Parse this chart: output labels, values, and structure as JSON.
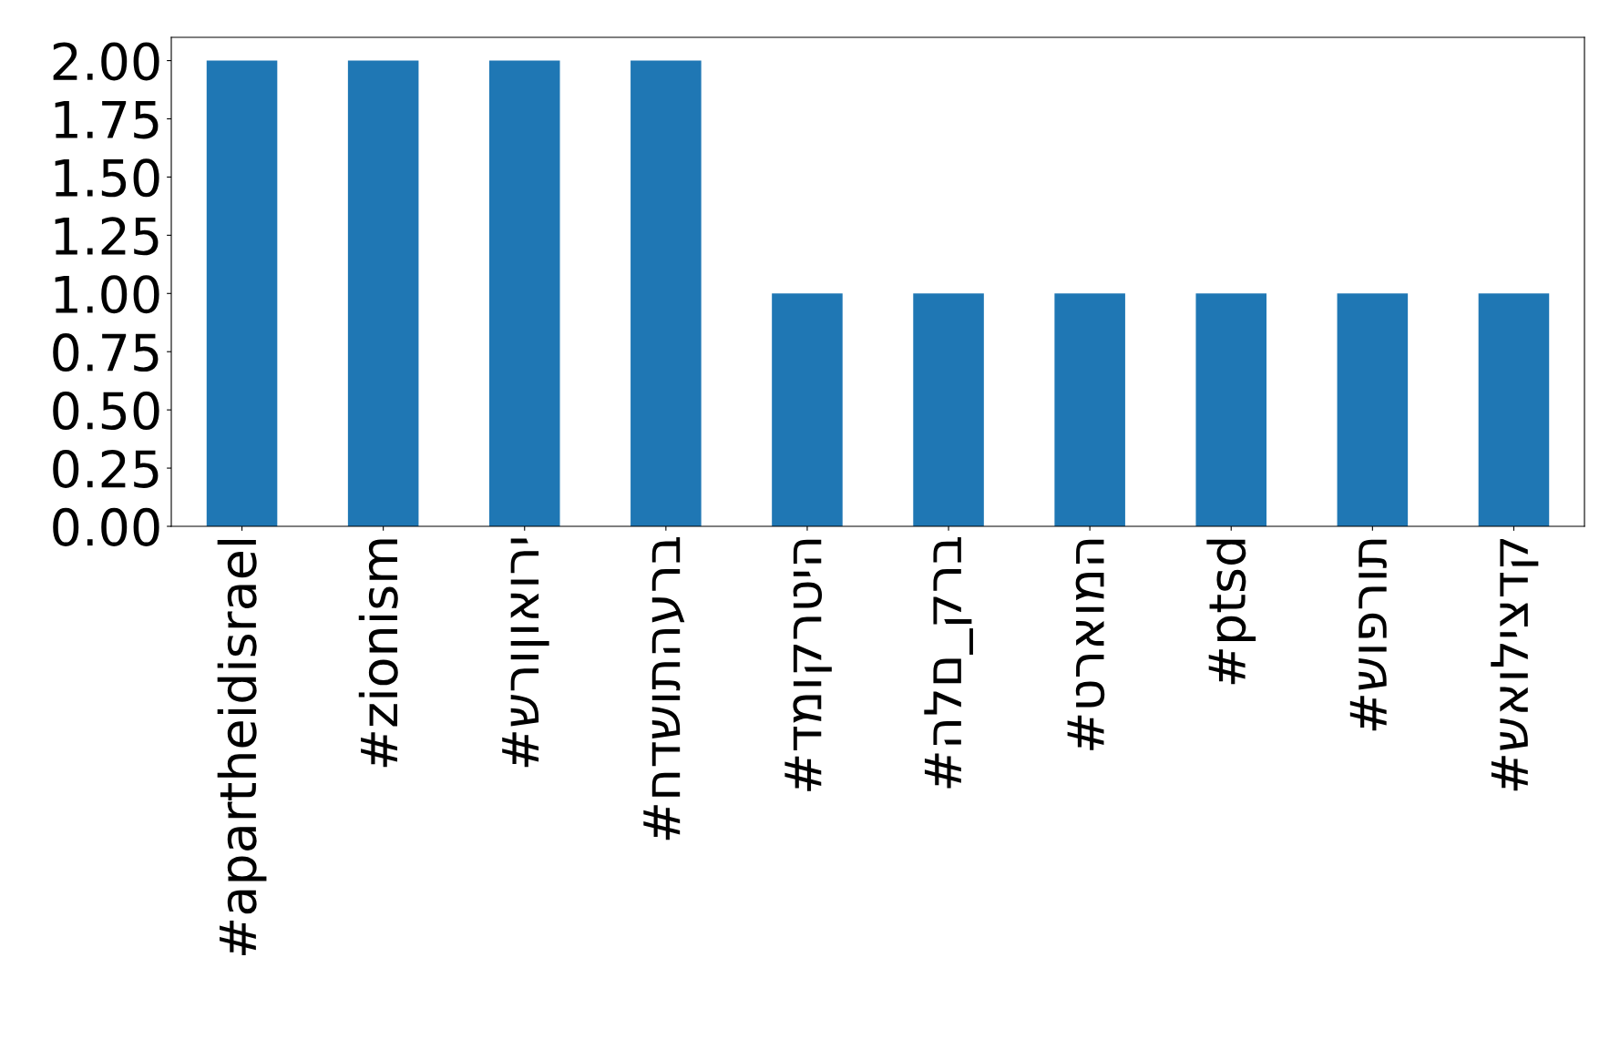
{
  "chart_data": {
    "type": "bar",
    "categories": [
      "#apartheidisrael",
      "#zionism",
      "#שרוןואורי",
      "#חדשותהערב",
      "#דמוקרטיה",
      "#הלם_קרב",
      "#טראומה",
      "#ptsd",
      "#שופרות",
      "#שאוליצדק"
    ],
    "values": [
      2,
      2,
      2,
      2,
      1,
      1,
      1,
      1,
      1,
      1
    ],
    "color": "#1f77b4",
    "ylim": [
      0,
      2.1
    ],
    "yticks": [
      {
        "value": 0,
        "label": "0.00"
      },
      {
        "value": 0.25,
        "label": "0.25"
      },
      {
        "value": 0.5,
        "label": "0.50"
      },
      {
        "value": 0.75,
        "label": "0.75"
      },
      {
        "value": 1,
        "label": "1.00"
      },
      {
        "value": 1.25,
        "label": "1.25"
      },
      {
        "value": 1.5,
        "label": "1.50"
      },
      {
        "value": 1.75,
        "label": "1.75"
      },
      {
        "value": 2,
        "label": "2.00"
      }
    ],
    "grid": false,
    "legend": false
  }
}
